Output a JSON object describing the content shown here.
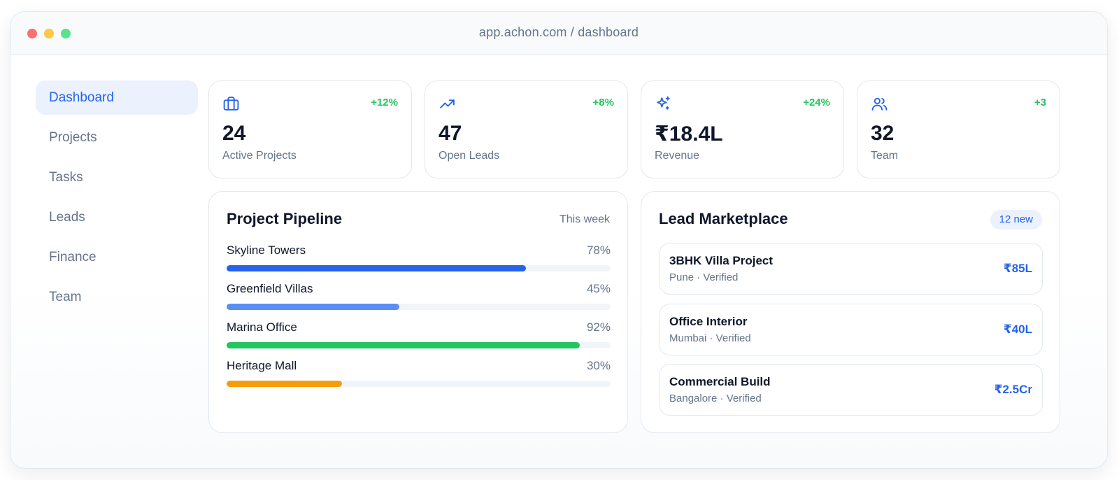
{
  "window": {
    "url": "app.achon.com / dashboard"
  },
  "sidebar": {
    "items": [
      {
        "label": "Dashboard",
        "active": true
      },
      {
        "label": "Projects"
      },
      {
        "label": "Tasks"
      },
      {
        "label": "Leads"
      },
      {
        "label": "Finance"
      },
      {
        "label": "Team"
      }
    ]
  },
  "stats": [
    {
      "icon": "briefcase-icon",
      "delta": "+12%",
      "value": "24",
      "label": "Active Projects"
    },
    {
      "icon": "trending-up-icon",
      "delta": "+8%",
      "value": "47",
      "label": "Open Leads"
    },
    {
      "icon": "sparkles-icon",
      "delta": "+24%",
      "value": "₹18.4L",
      "label": "Revenue"
    },
    {
      "icon": "users-icon",
      "delta": "+3",
      "value": "32",
      "label": "Team"
    }
  ],
  "pipeline": {
    "title": "Project Pipeline",
    "period": "This week",
    "projects": [
      {
        "name": "Skyline Towers",
        "percent_label": "78%",
        "progress": 78,
        "color": "#2563eb"
      },
      {
        "name": "Greenfield Villas",
        "percent_label": "45%",
        "progress": 45,
        "color": "#5b8ef2"
      },
      {
        "name": "Marina Office",
        "percent_label": "92%",
        "progress": 92,
        "color": "#22c55e"
      },
      {
        "name": "Heritage Mall",
        "percent_label": "30%",
        "progress": 30,
        "color": "#f59e0b"
      }
    ]
  },
  "marketplace": {
    "title": "Lead Marketplace",
    "badge": "12 new",
    "leads": [
      {
        "name": "3BHK Villa Project",
        "meta": "Pune · Verified",
        "price": "₹85L"
      },
      {
        "name": "Office Interior",
        "meta": "Mumbai · Verified",
        "price": "₹40L"
      },
      {
        "name": "Commercial Build",
        "meta": "Bangalore · Verified",
        "price": "₹2.5Cr"
      }
    ]
  },
  "colors": {
    "accent": "#2563eb",
    "positive": "#22c55e",
    "muted": "#64748b"
  }
}
